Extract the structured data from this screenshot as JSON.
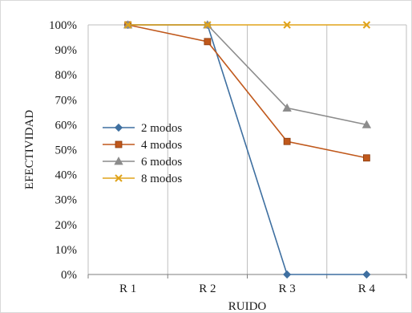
{
  "chart_data": {
    "type": "line",
    "title": "",
    "xlabel": "RUIDO",
    "ylabel": "EFECTIVIDAD",
    "categories": [
      "R 1",
      "R 2",
      "R 3",
      "R 4"
    ],
    "ylim": [
      0,
      100
    ],
    "ytick_values": [
      0,
      10,
      20,
      30,
      40,
      50,
      60,
      70,
      80,
      90,
      100
    ],
    "ytick_labels": [
      "0%",
      "10%",
      "20%",
      "30%",
      "40%",
      "50%",
      "60%",
      "70%",
      "80%",
      "90%",
      "100%"
    ],
    "grid": "vertical",
    "legend_position": "left",
    "series": [
      {
        "name": "2 modos",
        "values": [
          100,
          100,
          0,
          0
        ],
        "color": "#3e6fa0",
        "marker": "diamond"
      },
      {
        "name": "4 modos",
        "values": [
          100,
          93.3,
          53.3,
          46.7
        ],
        "color": "#c0581b",
        "marker": "square"
      },
      {
        "name": "6 modos",
        "values": [
          100,
          100,
          66.7,
          60
        ],
        "color": "#8c8c8c",
        "marker": "triangle"
      },
      {
        "name": "8 modos",
        "values": [
          100,
          100,
          100,
          100
        ],
        "color": "#e0a31a",
        "marker": "x"
      }
    ]
  }
}
